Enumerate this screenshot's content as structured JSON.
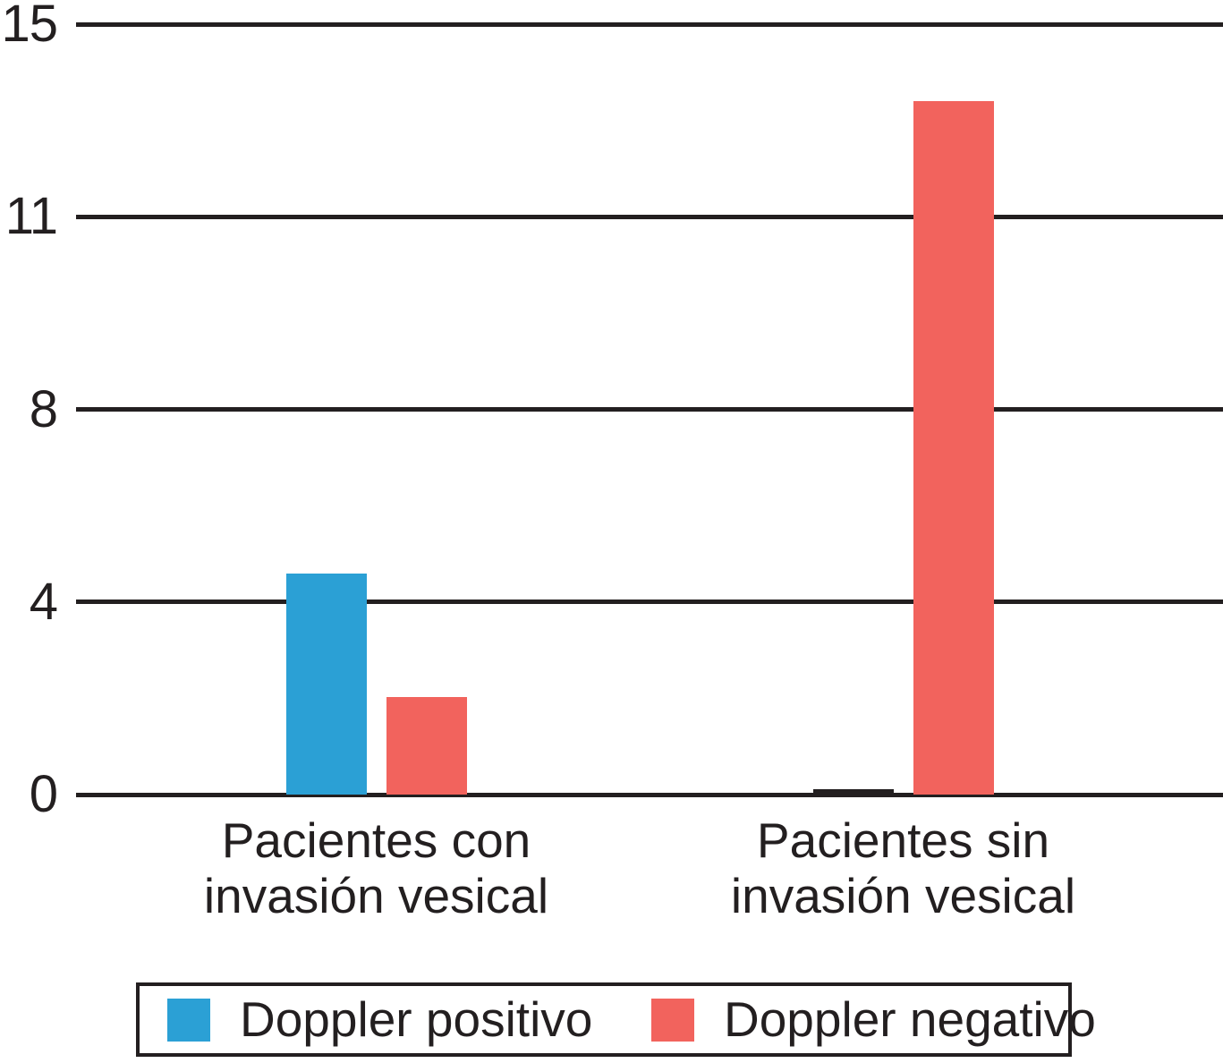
{
  "chart_data": {
    "type": "bar",
    "title": "",
    "xlabel": "",
    "ylabel": "",
    "categories": [
      {
        "lines": [
          "Pacientes con",
          "invasión vesical"
        ]
      },
      {
        "lines": [
          "Pacientes sin",
          "invasión vesical"
        ]
      }
    ],
    "series": [
      {
        "name": "Doppler positivo",
        "color": "#2ba0d5",
        "values": [
          4.3,
          0
        ]
      },
      {
        "name": "Doppler negativo",
        "color": "#f2635d",
        "values": [
          1.9,
          13.5
        ]
      }
    ],
    "ylim": [
      0,
      15
    ],
    "yticks": [
      {
        "value": 0,
        "label": "0"
      },
      {
        "value": 3.75,
        "label": "4"
      },
      {
        "value": 7.5,
        "label": "8"
      },
      {
        "value": 11.25,
        "label": "11"
      },
      {
        "value": 15,
        "label": "15"
      }
    ],
    "grid": "horizontal lines at every y tick, full plot width",
    "legend_position": "bottom, boxed",
    "axis_color": "#231f20",
    "zero_value_style": "zero-value bar drawn as short black tick on the baseline"
  }
}
